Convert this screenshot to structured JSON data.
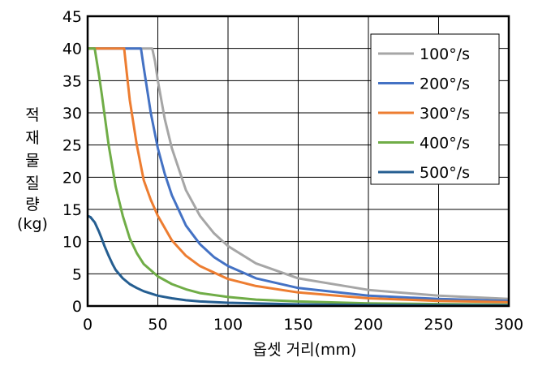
{
  "chart_data": {
    "type": "line",
    "xlabel": "옵셋 거리(mm)",
    "ylabel_chars": [
      "적",
      "재",
      "물",
      "질",
      "량",
      "(kg)"
    ],
    "xlim": [
      0,
      300
    ],
    "ylim": [
      0,
      45
    ],
    "xticks": [
      0,
      50,
      100,
      150,
      200,
      250,
      300
    ],
    "yticks": [
      0,
      5,
      10,
      15,
      20,
      25,
      30,
      35,
      40,
      45
    ],
    "grid": true,
    "legend_position": "top-right",
    "series": [
      {
        "name": "100°/s",
        "color": "#a6a6a6",
        "x": [
          0,
          46,
          48,
          50,
          55,
          60,
          70,
          80,
          90,
          100,
          120,
          150,
          200,
          250,
          300
        ],
        "y": [
          40,
          40,
          38,
          35,
          29,
          24.5,
          18,
          14,
          11.3,
          9.3,
          6.6,
          4.3,
          2.5,
          1.6,
          1.1
        ]
      },
      {
        "name": "200°/s",
        "color": "#4472c4",
        "x": [
          0,
          38,
          40,
          45,
          50,
          55,
          60,
          70,
          80,
          90,
          100,
          120,
          150,
          200,
          250,
          300
        ],
        "y": [
          40,
          40,
          37,
          30,
          24.5,
          20.5,
          17.2,
          12.5,
          9.6,
          7.6,
          6.2,
          4.3,
          2.8,
          1.6,
          1.1,
          0.8
        ]
      },
      {
        "name": "300°/s",
        "color": "#ed7d31",
        "x": [
          0,
          26,
          28,
          30,
          35,
          40,
          45,
          50,
          60,
          70,
          80,
          100,
          120,
          150,
          200,
          250,
          300
        ],
        "y": [
          40,
          40,
          36,
          32,
          25,
          19.5,
          16.5,
          14,
          10.2,
          7.8,
          6.2,
          4.2,
          3.1,
          2.1,
          1.2,
          0.8,
          0.6
        ]
      },
      {
        "name": "400°/s",
        "color": "#70ad47",
        "x": [
          0,
          5,
          8,
          10,
          15,
          20,
          25,
          30,
          35,
          40,
          50,
          60,
          70,
          80,
          100,
          120,
          150,
          200,
          250,
          300
        ],
        "y": [
          40,
          40,
          36,
          33,
          25,
          18.5,
          14,
          10.5,
          8.2,
          6.5,
          4.6,
          3.4,
          2.6,
          2,
          1.4,
          1,
          0.7,
          0.4,
          0.3,
          0.2
        ]
      },
      {
        "name": "500°/s",
        "color": "#255e91",
        "x": [
          0,
          2,
          5,
          8,
          10,
          12,
          15,
          18,
          20,
          25,
          30,
          35,
          40,
          50,
          60,
          70,
          80,
          100,
          150,
          200,
          300
        ],
        "y": [
          14,
          13.8,
          13,
          11.6,
          10.5,
          9.3,
          7.8,
          6.4,
          5.6,
          4.3,
          3.4,
          2.8,
          2.3,
          1.6,
          1.2,
          0.9,
          0.7,
          0.5,
          0.25,
          0.15,
          0.1
        ]
      }
    ]
  }
}
